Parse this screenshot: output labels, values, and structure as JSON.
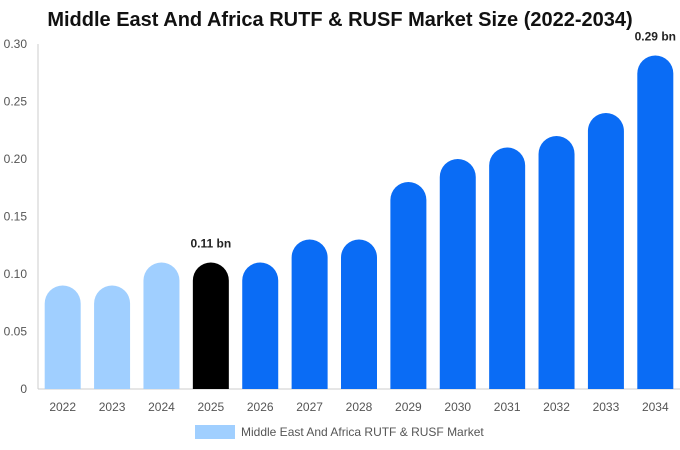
{
  "chart_data": {
    "type": "bar",
    "title": "Middle East And Africa RUTF & RUSF Market Size (2022-2034)",
    "categories": [
      "2022",
      "2023",
      "2024",
      "2025",
      "2026",
      "2027",
      "2028",
      "2029",
      "2030",
      "2031",
      "2032",
      "2033",
      "2034"
    ],
    "series": [
      {
        "name": "Middle East And Africa RUTF & RUSF Market",
        "values": [
          0.09,
          0.09,
          0.11,
          0.11,
          0.11,
          0.13,
          0.13,
          0.18,
          0.2,
          0.21,
          0.22,
          0.24,
          0.29
        ]
      }
    ],
    "ylim": [
      0,
      0.3
    ],
    "yticks": [
      "0",
      "0.05",
      "0.10",
      "0.15",
      "0.20",
      "0.25",
      "0.30"
    ],
    "data_labels": [
      {
        "category": "2025",
        "text": "0.11 bn"
      },
      {
        "category": "2034",
        "text": "0.29 bn"
      }
    ],
    "colors": {
      "historical": "#a0cfff",
      "current": "#000000",
      "forecast": "#0a6cf5"
    },
    "legend_position": "bottom"
  }
}
